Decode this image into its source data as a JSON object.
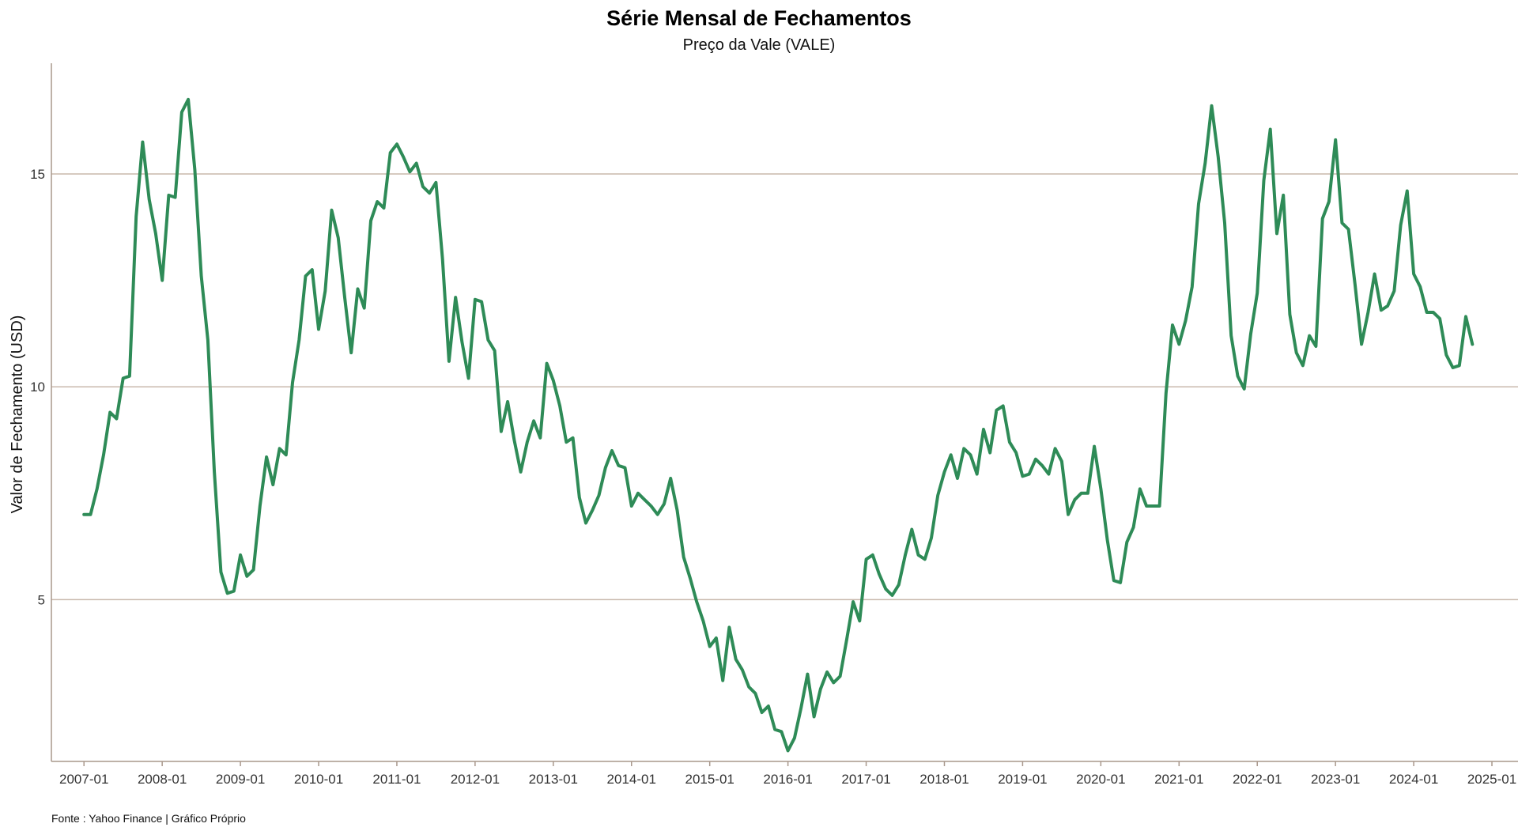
{
  "title": "Série Mensal de Fechamentos",
  "subtitle": "Preço da Vale (VALE)",
  "caption": "Fonte : Yahoo Finance | Gráfico Próprio",
  "chart_data": {
    "type": "line",
    "title": "Série Mensal de Fechamentos",
    "subtitle": "Preço da Vale (VALE)",
    "xlabel": "",
    "ylabel": "Valor de Fechamento (USD)",
    "x_start": "2007-01",
    "x_interval": "monthly",
    "xlim": [
      "2006-08",
      "2025-05"
    ],
    "ylim": [
      1.2,
      17.6
    ],
    "x_ticks": [
      "2007-01",
      "2008-01",
      "2009-01",
      "2010-01",
      "2011-01",
      "2012-01",
      "2013-01",
      "2014-01",
      "2015-01",
      "2016-01",
      "2017-01",
      "2018-01",
      "2019-01",
      "2020-01",
      "2021-01",
      "2022-01",
      "2023-01",
      "2024-01",
      "2025-01"
    ],
    "y_ticks": [
      5,
      10,
      15
    ],
    "grid": "horizontal",
    "line_color": "#2e8b57",
    "grid_color": "#c9b8ac",
    "series": [
      {
        "values": [
          7.0,
          7.0,
          7.6,
          8.4,
          9.4,
          9.25,
          10.2,
          10.25,
          14.0,
          15.75,
          14.4,
          13.6,
          12.5,
          14.5,
          14.45,
          16.45,
          16.75,
          15.1,
          12.6,
          11.1,
          8.0,
          5.65,
          5.15,
          5.2,
          6.05,
          5.55,
          5.7,
          7.2,
          8.35,
          7.7,
          8.55,
          8.4,
          10.1,
          11.1,
          12.6,
          12.75,
          11.35,
          12.25,
          14.15,
          13.5,
          12.1,
          10.8,
          12.3,
          11.85,
          13.9,
          14.35,
          14.2,
          15.5,
          15.7,
          15.4,
          15.05,
          15.25,
          14.7,
          14.55,
          14.8,
          13.0,
          10.6,
          12.1,
          11.05,
          10.2,
          12.05,
          12.0,
          11.1,
          10.85,
          8.95,
          9.65,
          8.75,
          8.0,
          8.7,
          9.2,
          8.8,
          10.55,
          10.15,
          9.55,
          8.7,
          8.8,
          7.4,
          6.8,
          7.1,
          7.45,
          8.1,
          8.5,
          8.15,
          8.1,
          7.2,
          7.5,
          7.35,
          7.2,
          7.0,
          7.25,
          7.85,
          7.1,
          6.0,
          5.5,
          4.95,
          4.5,
          3.9,
          4.1,
          3.1,
          4.35,
          3.6,
          3.35,
          2.95,
          2.8,
          2.35,
          2.5,
          1.95,
          1.9,
          1.45,
          1.75,
          2.45,
          3.25,
          2.25,
          2.9,
          3.3,
          3.05,
          3.2,
          4.05,
          4.95,
          4.5,
          5.95,
          6.05,
          5.6,
          5.25,
          5.1,
          5.35,
          6.05,
          6.65,
          6.05,
          5.95,
          6.45,
          7.45,
          8.0,
          8.4,
          7.85,
          8.55,
          8.4,
          7.95,
          9.0,
          8.45,
          9.45,
          9.55,
          8.7,
          8.45,
          7.9,
          7.95,
          8.3,
          8.15,
          7.95,
          8.55,
          8.25,
          7.0,
          7.35,
          7.5,
          7.5,
          8.6,
          7.6,
          6.4,
          5.45,
          5.4,
          6.35,
          6.7,
          7.6,
          7.2,
          7.2,
          7.2,
          9.85,
          11.45,
          11.0,
          11.55,
          12.35,
          14.3,
          15.25,
          16.6,
          15.4,
          13.85,
          11.2,
          10.25,
          9.95,
          11.25,
          12.2,
          14.85,
          16.05,
          13.6,
          14.5,
          11.7,
          10.8,
          10.5,
          11.2,
          10.95,
          13.95,
          14.35,
          15.8,
          13.85,
          13.7,
          12.4,
          11.0,
          11.75,
          12.65,
          11.8,
          11.9,
          12.25,
          13.8,
          14.6,
          12.65,
          12.35,
          11.75,
          11.75,
          11.6,
          10.75,
          10.45,
          10.5,
          11.65,
          11.0
        ]
      }
    ]
  }
}
